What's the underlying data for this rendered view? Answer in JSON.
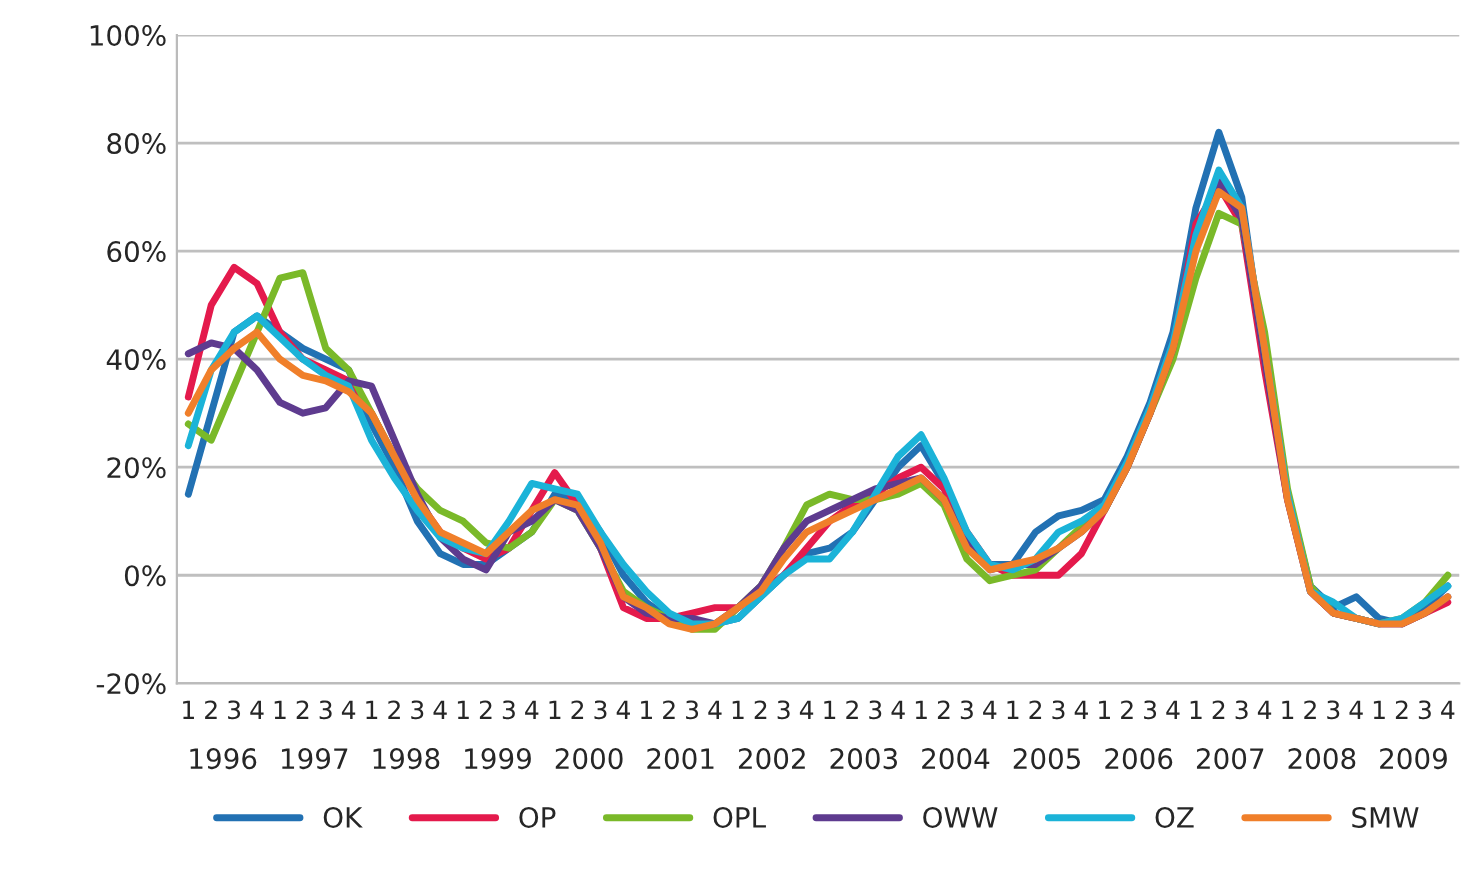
{
  "chart_data": {
    "type": "line",
    "categories": [
      "1",
      "2",
      "3",
      "4",
      "1",
      "2",
      "3",
      "4",
      "1",
      "2",
      "3",
      "4",
      "1",
      "2",
      "3",
      "4",
      "1",
      "2",
      "3",
      "4",
      "1",
      "2",
      "3",
      "4",
      "1",
      "2",
      "3",
      "4",
      "1",
      "2",
      "3",
      "4",
      "1",
      "2",
      "3",
      "4",
      "1",
      "2",
      "3",
      "4",
      "1",
      "2",
      "3",
      "4",
      "1",
      "2",
      "3",
      "4",
      "1",
      "2",
      "3",
      "4",
      "1",
      "2",
      "3",
      "4"
    ],
    "series": [
      {
        "name": "OK",
        "color": "#2271b3",
        "values": [
          15,
          30,
          45,
          48,
          45,
          42,
          40,
          38,
          28,
          20,
          10,
          4,
          2,
          2,
          5,
          8,
          15,
          14,
          8,
          0,
          -5,
          -8,
          -9,
          -9,
          -8,
          -4,
          0,
          4,
          5,
          8,
          14,
          20,
          24,
          17,
          6,
          2,
          2,
          8,
          11,
          12,
          14,
          22,
          32,
          45,
          68,
          82,
          70,
          40,
          15,
          -2,
          -6,
          -4,
          -8,
          -9,
          -6,
          -2
        ]
      },
      {
        "name": "OP",
        "color": "#e41a4c",
        "values": [
          33,
          50,
          57,
          54,
          45,
          40,
          38,
          36,
          30,
          22,
          14,
          8,
          5,
          3,
          5,
          12,
          19,
          13,
          5,
          -6,
          -8,
          -8,
          -7,
          -6,
          -6,
          -3,
          0,
          5,
          10,
          13,
          15,
          18,
          20,
          16,
          8,
          2,
          0,
          0,
          0,
          4,
          12,
          20,
          30,
          42,
          65,
          72,
          65,
          38,
          14,
          -3,
          -7,
          -8,
          -9,
          -9,
          -7,
          -5
        ]
      },
      {
        "name": "OPL",
        "color": "#7ab929",
        "values": [
          28,
          25,
          35,
          45,
          55,
          56,
          42,
          38,
          30,
          22,
          16,
          12,
          10,
          6,
          5,
          8,
          14,
          12,
          5,
          -3,
          -6,
          -8,
          -10,
          -10,
          -6,
          -2,
          5,
          13,
          15,
          14,
          14,
          15,
          17,
          13,
          3,
          -1,
          0,
          1,
          5,
          9,
          12,
          20,
          30,
          40,
          55,
          67,
          65,
          45,
          16,
          -2,
          -7,
          -8,
          -9,
          -8,
          -5,
          0
        ]
      },
      {
        "name": "OWW",
        "color": "#5e3b8f",
        "values": [
          41,
          43,
          42,
          38,
          32,
          30,
          31,
          36,
          35,
          25,
          15,
          7,
          3,
          1,
          8,
          10,
          14,
          12,
          5,
          -4,
          -7,
          -8,
          -8,
          -9,
          -6,
          -2,
          5,
          10,
          12,
          14,
          16,
          17,
          18,
          14,
          6,
          1,
          2,
          2,
          5,
          8,
          12,
          20,
          30,
          42,
          63,
          73,
          66,
          40,
          14,
          -3,
          -7,
          -8,
          -9,
          -9,
          -7,
          -4
        ]
      },
      {
        "name": "OZ",
        "color": "#1bb3d8",
        "values": [
          24,
          38,
          45,
          48,
          44,
          40,
          37,
          35,
          25,
          18,
          12,
          7,
          5,
          4,
          10,
          17,
          16,
          15,
          8,
          2,
          -3,
          -7,
          -9,
          -9,
          -8,
          -4,
          0,
          3,
          3,
          8,
          15,
          22,
          26,
          18,
          8,
          2,
          1,
          3,
          8,
          10,
          13,
          21,
          31,
          43,
          63,
          75,
          68,
          42,
          15,
          -3,
          -5,
          -8,
          -9,
          -8,
          -5,
          -2
        ]
      },
      {
        "name": "SMW",
        "color": "#f07f2a",
        "values": [
          30,
          38,
          42,
          45,
          40,
          37,
          36,
          34,
          30,
          22,
          14,
          8,
          6,
          4,
          8,
          12,
          14,
          13,
          6,
          -4,
          -6,
          -9,
          -10,
          -9,
          -6,
          -3,
          3,
          8,
          10,
          12,
          14,
          16,
          18,
          14,
          5,
          1,
          2,
          3,
          5,
          8,
          12,
          20,
          30,
          42,
          60,
          71,
          68,
          42,
          14,
          -3,
          -7,
          -8,
          -9,
          -9,
          -7,
          -4
        ]
      }
    ],
    "ylim": [
      -20,
      100
    ],
    "yticks": [
      {
        "value": -20,
        "label": "-20%"
      },
      {
        "value": 0,
        "label": "0%"
      },
      {
        "value": 20,
        "label": "20%"
      },
      {
        "value": 40,
        "label": "40%"
      },
      {
        "value": 60,
        "label": "60%"
      },
      {
        "value": 80,
        "label": "80%"
      },
      {
        "value": 100,
        "label": "100%"
      }
    ],
    "annotations": [
      "1996",
      "1997",
      "1998",
      "1999",
      "2000",
      "2001",
      "2002",
      "2003",
      "2004",
      "2005",
      "2006",
      "2007",
      "2008",
      "2009"
    ],
    "grid": "y",
    "legend": "bottom",
    "marker": "none",
    "line_style": "solid"
  }
}
